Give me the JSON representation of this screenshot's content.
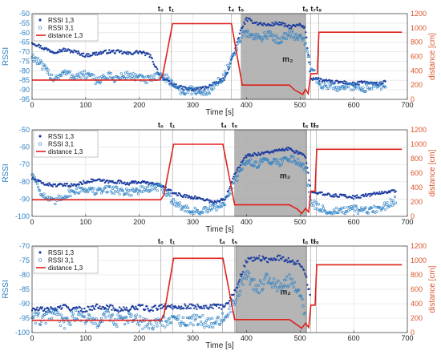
{
  "colors": {
    "rssi13": "#1f3fa0",
    "rssi31": "#2a7fc4",
    "distance": "#e0201b",
    "distance_axis": "#d9532b",
    "shade": "#a8a8a8",
    "grid": "#dcdcdc",
    "vline": "#9a9a9a"
  },
  "chart_data": [
    {
      "type": "line",
      "xlabel": "Time [s]",
      "ylabel_left": "RSSI",
      "ylabel_right": "distance [cm]",
      "xlim": [
        0,
        700
      ],
      "ylim_left": [
        -95,
        -50
      ],
      "ylim_right": [
        0,
        1200
      ],
      "xticks": [
        "0",
        "100",
        "200",
        "300",
        "400",
        "500",
        "600",
        "700"
      ],
      "yticks_left": [
        "-95",
        "-90",
        "-85",
        "-80",
        "-75",
        "-70",
        "-65",
        "-60",
        "-55",
        "-50"
      ],
      "yticks_right": [
        "0",
        "200",
        "400",
        "600",
        "800",
        "1000",
        "1200"
      ],
      "grid": true,
      "legend": [
        "RSSI 1,3",
        "RSSI 3,1",
        "distance 1,3"
      ],
      "legend_position": "top-left",
      "shaded_region": {
        "x": [
          390,
          510
        ],
        "label": "m₂"
      },
      "events": [
        {
          "label": "t₀",
          "x": 240
        },
        {
          "label": "t₁",
          "x": 260
        },
        {
          "label": "t₄",
          "x": 372
        },
        {
          "label": "t₅",
          "x": 390
        },
        {
          "label": "t₆",
          "x": 510
        },
        {
          "label": "t₇",
          "x": 520
        },
        {
          "label": "t₉",
          "x": 535
        }
      ],
      "series": [
        {
          "name": "RSSI 1,3",
          "axis": "left",
          "x": [
            0,
            20,
            40,
            60,
            80,
            100,
            120,
            140,
            160,
            180,
            200,
            220,
            240,
            260,
            280,
            300,
            320,
            340,
            360,
            380,
            390,
            400,
            420,
            440,
            460,
            480,
            500,
            510,
            520,
            530,
            540,
            560,
            580,
            600,
            620,
            640,
            660
          ],
          "y": [
            -65,
            -68,
            -70,
            -69,
            -70,
            -72,
            -71,
            -70,
            -70,
            -71,
            -70,
            -72,
            -83,
            -87,
            -89,
            -90,
            -89,
            -87,
            -84,
            -68,
            -58,
            -53,
            -55,
            -56,
            -55,
            -57,
            -56,
            -58,
            -84,
            -84,
            -85,
            -86,
            -86,
            -87,
            -86,
            -87,
            -86
          ]
        },
        {
          "name": "RSSI 3,1",
          "axis": "left",
          "x": [
            0,
            20,
            40,
            60,
            80,
            100,
            120,
            140,
            160,
            180,
            200,
            220,
            240,
            260,
            280,
            300,
            320,
            340,
            360,
            380,
            390,
            400,
            420,
            440,
            460,
            480,
            500,
            510,
            520,
            530,
            540,
            560,
            580,
            600,
            620,
            640,
            660
          ],
          "y": [
            -72,
            -78,
            -84,
            -81,
            -83,
            -82,
            -85,
            -83,
            -84,
            -82,
            -84,
            -85,
            -82,
            -86,
            -91,
            -90,
            -92,
            -88,
            -82,
            -70,
            -62,
            -60,
            -63,
            -61,
            -64,
            -60,
            -63,
            -65,
            -78,
            -84,
            -88,
            -88,
            -89,
            -88,
            -89,
            -88,
            -87
          ]
        },
        {
          "name": "distance 1,3",
          "axis": "right",
          "x": [
            0,
            238,
            244,
            262,
            372,
            392,
            480,
            490,
            505,
            510,
            515,
            520,
            532,
            535,
            690
          ],
          "y": [
            270,
            270,
            350,
            1060,
            1060,
            200,
            200,
            130,
            70,
            140,
            80,
            360,
            360,
            940,
            940
          ]
        }
      ]
    },
    {
      "type": "line",
      "xlabel": "Time [s]",
      "ylabel_left": "RSSI",
      "ylabel_right": "distance [cm]",
      "xlim": [
        0,
        700
      ],
      "ylim_left": [
        -100,
        -50
      ],
      "ylim_right": [
        0,
        1200
      ],
      "xticks": [
        "0",
        "100",
        "200",
        "300",
        "400",
        "500",
        "600",
        "700"
      ],
      "yticks_left": [
        "-100",
        "-90",
        "-80",
        "-70",
        "-60",
        "-50"
      ],
      "yticks_right": [
        "0",
        "200",
        "400",
        "600",
        "800",
        "1000",
        "1200"
      ],
      "grid": true,
      "legend": [
        "RSSI 1,3",
        "RSSI 3,1",
        "distance 1,3"
      ],
      "legend_position": "top-left",
      "shaded_region": {
        "x": [
          378,
          512
        ],
        "label": "m₂"
      },
      "events": [
        {
          "label": "t₀",
          "x": 240
        },
        {
          "label": "t₁",
          "x": 262
        },
        {
          "label": "t₄",
          "x": 358
        },
        {
          "label": "t₅",
          "x": 378
        },
        {
          "label": "t₆",
          "x": 510
        },
        {
          "label": "t₇",
          "x": 520
        },
        {
          "label": "t₉",
          "x": 530
        }
      ],
      "series": [
        {
          "name": "RSSI 1,3",
          "axis": "left",
          "x": [
            0,
            20,
            40,
            60,
            80,
            100,
            120,
            140,
            160,
            180,
            200,
            220,
            240,
            260,
            280,
            300,
            320,
            340,
            360,
            378,
            400,
            420,
            440,
            460,
            480,
            500,
            510,
            520,
            540,
            560,
            580,
            600,
            620,
            640,
            660,
            680
          ],
          "y": [
            -78,
            -81,
            -82,
            -82,
            -82,
            -80,
            -79,
            -80,
            -80,
            -81,
            -80,
            -81,
            -82,
            -86,
            -88,
            -89,
            -90,
            -92,
            -90,
            -75,
            -65,
            -64,
            -63,
            -62,
            -61,
            -64,
            -65,
            -85,
            -87,
            -88,
            -88,
            -89,
            -88,
            -87,
            -86,
            -85
          ]
        },
        {
          "name": "RSSI 3,1",
          "axis": "left",
          "x": [
            0,
            20,
            40,
            60,
            80,
            100,
            120,
            140,
            160,
            180,
            200,
            220,
            240,
            260,
            280,
            300,
            320,
            340,
            360,
            378,
            400,
            420,
            440,
            460,
            480,
            500,
            510,
            520,
            540,
            560,
            580,
            600,
            620,
            640,
            660,
            680
          ],
          "y": [
            -75,
            -88,
            -92,
            -88,
            -85,
            -84,
            -86,
            -84,
            -85,
            -86,
            -85,
            -84,
            -83,
            -90,
            -95,
            -97,
            -97,
            -95,
            -92,
            -80,
            -68,
            -70,
            -67,
            -69,
            -66,
            -69,
            -72,
            -92,
            -96,
            -97,
            -97,
            -96,
            -97,
            -96,
            -94,
            -90
          ]
        },
        {
          "name": "distance 1,3",
          "axis": "right",
          "x": [
            0,
            240,
            246,
            264,
            356,
            378,
            480,
            495,
            503,
            510,
            516,
            520,
            528,
            531,
            690
          ],
          "y": [
            230,
            230,
            300,
            1000,
            1000,
            160,
            160,
            100,
            40,
            110,
            60,
            350,
            350,
            930,
            930
          ]
        }
      ]
    },
    {
      "type": "line",
      "xlabel": "Time [s]",
      "ylabel_left": "RSSI",
      "ylabel_right": "distance [cm]",
      "xlim": [
        0,
        700
      ],
      "ylim_left": [
        -100,
        -70
      ],
      "ylim_right": [
        0,
        1200
      ],
      "xticks": [
        "0",
        "100",
        "200",
        "300",
        "400",
        "500",
        "600",
        "700"
      ],
      "yticks_left": [
        "-100",
        "-95",
        "-90",
        "-85",
        "-80",
        "-75",
        "-70"
      ],
      "yticks_right": [
        "0",
        "200",
        "400",
        "600",
        "800",
        "1000",
        "1200"
      ],
      "grid": true,
      "legend": [
        "RSSI 1,3",
        "RSSI 3,1",
        "distance 1,3"
      ],
      "legend_position": "top-left",
      "shaded_region": {
        "x": [
          380,
          512
        ],
        "label": "m₂"
      },
      "events": [
        {
          "label": "t₀",
          "x": 240
        },
        {
          "label": "t₁",
          "x": 262
        },
        {
          "label": "t₄",
          "x": 355
        },
        {
          "label": "t₅",
          "x": 378
        },
        {
          "label": "t₆",
          "x": 510
        },
        {
          "label": "t₇",
          "x": 520
        },
        {
          "label": "t₉",
          "x": 530
        }
      ],
      "series": [
        {
          "name": "RSSI 1,3",
          "axis": "left",
          "x": [
            0,
            20,
            40,
            60,
            80,
            100,
            120,
            140,
            160,
            180,
            200,
            220,
            240,
            260,
            300,
            340,
            360,
            380,
            400,
            420,
            440,
            460,
            480,
            500,
            510,
            520
          ],
          "y": [
            -92,
            -92,
            -92,
            -91,
            -92,
            -92,
            -91,
            -91,
            -92,
            -92,
            -91,
            -92,
            -91,
            -91,
            -91,
            -91,
            -91,
            -85,
            -75,
            -74,
            -75,
            -74,
            -75,
            -76,
            -80,
            -88
          ]
        },
        {
          "name": "RSSI 3,1",
          "axis": "left",
          "x": [
            0,
            20,
            40,
            60,
            80,
            100,
            120,
            140,
            160,
            180,
            200,
            220,
            240,
            260,
            300,
            340,
            360,
            380,
            400,
            420,
            440,
            460,
            480,
            500,
            510
          ],
          "y": [
            -94,
            -96,
            -93,
            -97,
            -94,
            -95,
            -97,
            -94,
            -96,
            -95,
            -96,
            -98,
            -96,
            -96,
            -96,
            -96,
            -95,
            -88,
            -80,
            -85,
            -81,
            -84,
            -82,
            -86,
            -95
          ]
        },
        {
          "name": "distance 1,3",
          "axis": "right",
          "x": [
            0,
            240,
            246,
            264,
            356,
            378,
            480,
            492,
            503,
            510,
            516,
            520,
            528,
            531,
            690
          ],
          "y": [
            170,
            170,
            250,
            1030,
            1030,
            180,
            180,
            120,
            60,
            130,
            70,
            380,
            380,
            940,
            940
          ]
        }
      ]
    }
  ]
}
